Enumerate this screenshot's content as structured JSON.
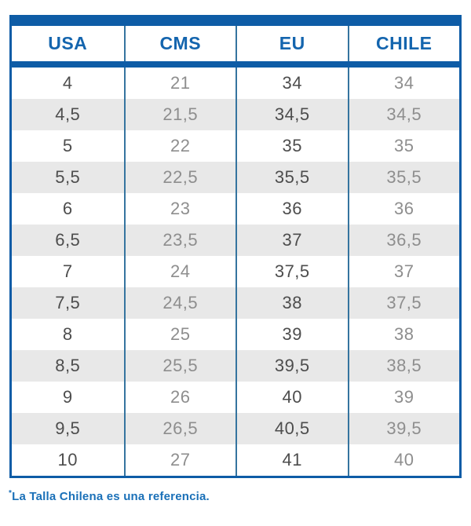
{
  "chart_data": {
    "type": "table",
    "columns": [
      "USA",
      "CMS",
      "EU",
      "CHILE"
    ],
    "rows": [
      [
        "4",
        "21",
        "34",
        "34"
      ],
      [
        "4,5",
        "21,5",
        "34,5",
        "34,5"
      ],
      [
        "5",
        "22",
        "35",
        "35"
      ],
      [
        "5,5",
        "22,5",
        "35,5",
        "35,5"
      ],
      [
        "6",
        "23",
        "36",
        "36"
      ],
      [
        "6,5",
        "23,5",
        "37",
        "36,5"
      ],
      [
        "7",
        "24",
        "37,5",
        "37"
      ],
      [
        "7,5",
        "24,5",
        "38",
        "37,5"
      ],
      [
        "8",
        "25",
        "39",
        "38"
      ],
      [
        "8,5",
        "25,5",
        "39,5",
        "38,5"
      ],
      [
        "9",
        "26",
        "40",
        "39"
      ],
      [
        "9,5",
        "26,5",
        "40,5",
        "39,5"
      ],
      [
        "10",
        "27",
        "41",
        "40"
      ]
    ],
    "note": "*La Talla Chilena es una referencia."
  },
  "footnote": {
    "asterisk": "*",
    "text": "La Talla Chilena es una referencia."
  },
  "colors": {
    "brand_blue": "#0E5CA6",
    "header_text_blue": "#1465AE",
    "divider_blue": "#35749F",
    "row_alt_gray": "#E8E8E8",
    "text_dark": "#4D4D4D",
    "text_light": "#8E8E8E",
    "footnote_blue": "#1A70B8"
  }
}
